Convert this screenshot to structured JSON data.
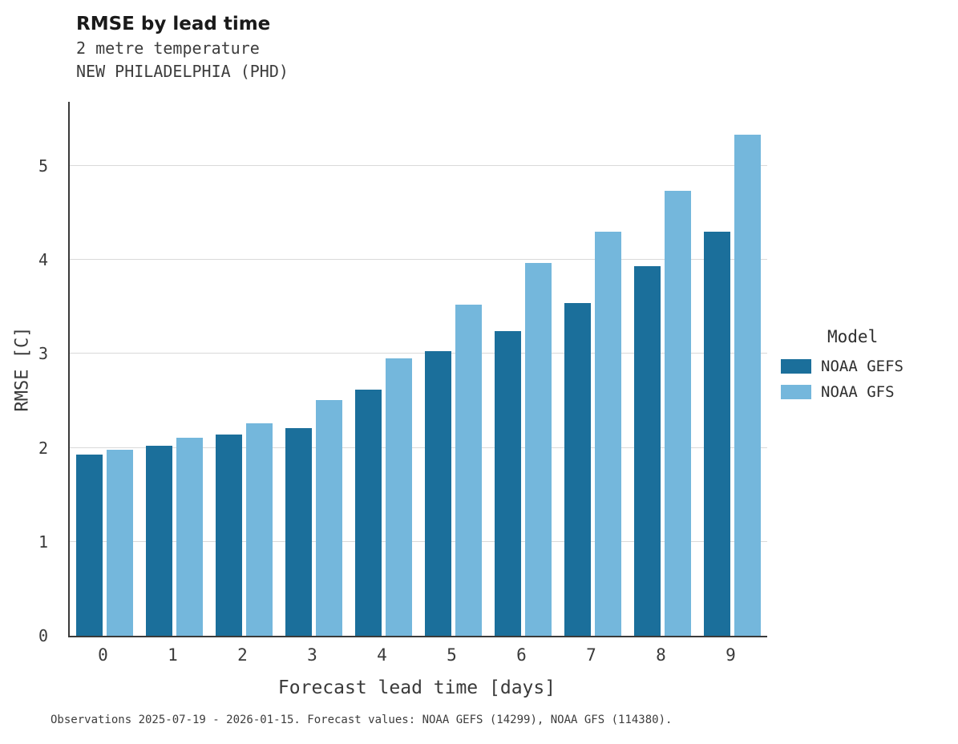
{
  "title": "RMSE by lead time",
  "subtitle1": "2 metre temperature",
  "subtitle2": "NEW PHILADELPHIA (PHD)",
  "caption": "Observations 2025-07-19 - 2026-01-15. Forecast values: NOAA GEFS (14299), NOAA GFS (114380).",
  "legend": {
    "title": "Model",
    "items": [
      {
        "label": "NOAA GEFS",
        "color": "#1b6f9b"
      },
      {
        "label": "NOAA GFS",
        "color": "#74b7dc"
      }
    ]
  },
  "chart_data": {
    "type": "bar",
    "title": "RMSE by lead time",
    "subtitle": "2 metre temperature — NEW PHILADELPHIA (PHD)",
    "xlabel": "Forecast lead time [days]",
    "ylabel": "RMSE [C]",
    "categories": [
      "0",
      "1",
      "2",
      "3",
      "4",
      "5",
      "6",
      "7",
      "8",
      "9"
    ],
    "series": [
      {
        "name": "NOAA GEFS",
        "color": "#1b6f9b",
        "values": [
          1.93,
          2.02,
          2.14,
          2.21,
          2.62,
          3.03,
          3.24,
          3.54,
          3.93,
          4.3
        ]
      },
      {
        "name": "NOAA GFS",
        "color": "#74b7dc",
        "values": [
          1.98,
          2.11,
          2.26,
          2.51,
          2.95,
          3.52,
          3.97,
          4.3,
          4.73,
          5.33
        ]
      }
    ],
    "ylim": [
      0,
      5.68
    ],
    "yticks": [
      0,
      1,
      2,
      3,
      4,
      5
    ],
    "grid": true,
    "legend_position": "right"
  }
}
